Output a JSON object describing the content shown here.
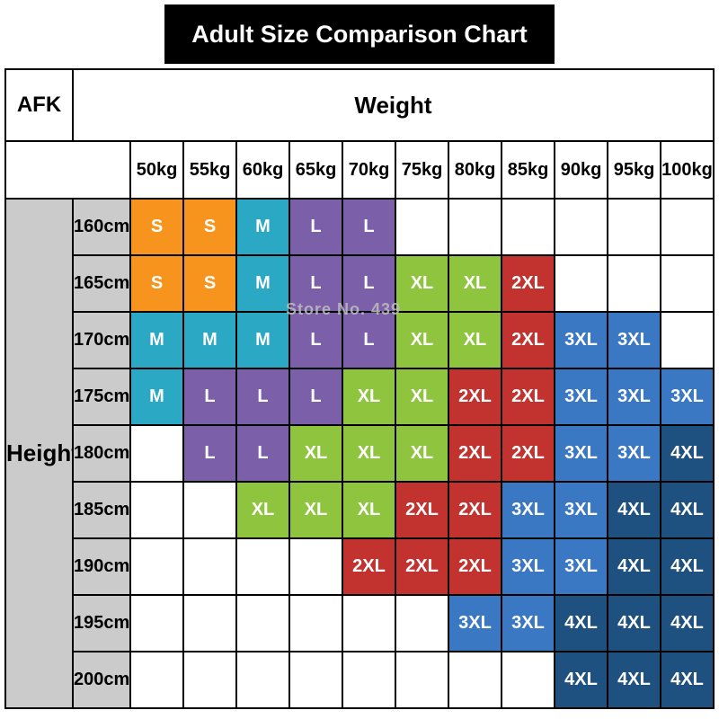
{
  "title": "Adult Size Comparison Chart",
  "corner_label": "AFK",
  "watermark": "Store No. 439",
  "chart_data": {
    "type": "table",
    "x_header": "Weight",
    "y_header": "Height",
    "columns": [
      "50kg",
      "55kg",
      "60kg",
      "65kg",
      "70kg",
      "75kg",
      "80kg",
      "85kg",
      "90kg",
      "95kg",
      "100kg"
    ],
    "rows": [
      "160cm",
      "165cm",
      "170cm",
      "175cm",
      "180cm",
      "185cm",
      "190cm",
      "195cm",
      "200cm"
    ],
    "cells": [
      [
        "S",
        "S",
        "M",
        "L",
        "L",
        "",
        "",
        "",
        "",
        "",
        ""
      ],
      [
        "S",
        "S",
        "M",
        "L",
        "L",
        "XL",
        "XL",
        "2XL",
        "",
        "",
        ""
      ],
      [
        "M",
        "M",
        "M",
        "L",
        "L",
        "XL",
        "XL",
        "2XL",
        "3XL",
        "3XL",
        ""
      ],
      [
        "M",
        "L",
        "L",
        "L",
        "XL",
        "XL",
        "2XL",
        "2XL",
        "3XL",
        "3XL",
        "3XL"
      ],
      [
        "",
        "L",
        "L",
        "XL",
        "XL",
        "XL",
        "2XL",
        "2XL",
        "3XL",
        "3XL",
        "4XL"
      ],
      [
        "",
        "",
        "XL",
        "XL",
        "XL",
        "2XL",
        "2XL",
        "3XL",
        "3XL",
        "4XL",
        "4XL"
      ],
      [
        "",
        "",
        "",
        "",
        "2XL",
        "2XL",
        "2XL",
        "3XL",
        "3XL",
        "4XL",
        "4XL"
      ],
      [
        "",
        "",
        "",
        "",
        "",
        "",
        "3XL",
        "3XL",
        "4XL",
        "4XL",
        "4XL"
      ],
      [
        "",
        "",
        "",
        "",
        "",
        "",
        "",
        "",
        "4XL",
        "4XL",
        "4XL"
      ]
    ],
    "size_colors": {
      "S": "#F7941D",
      "M": "#2BA9C4",
      "L": "#7B5FA9",
      "XL": "#8FC43F",
      "2XL": "#C2332F",
      "3XL": "#3B78C4",
      "4XL": "#1E5180"
    },
    "empty_color": "#ffffff",
    "grid_border_color": "#000000",
    "header_bg": "#cbcbcb",
    "legend_position": "none"
  }
}
